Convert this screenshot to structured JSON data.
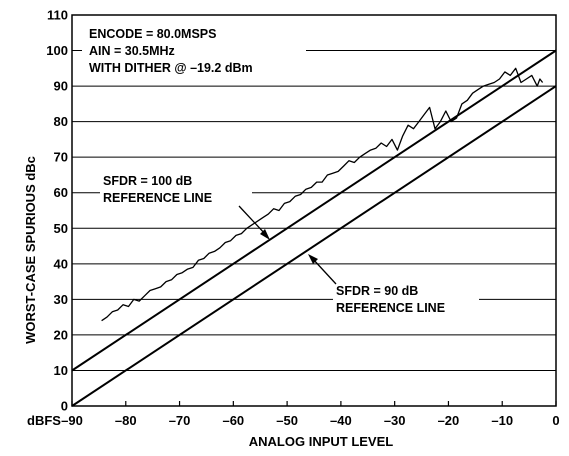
{
  "chart_data": {
    "type": "line",
    "title": "",
    "xlabel": "ANALOG INPUT LEVEL",
    "ylabel": "WORST-CASE SPURIOUS dBc",
    "x_unit_label": "dBFS",
    "xlim": [
      -90,
      0
    ],
    "ylim": [
      0,
      110
    ],
    "x_ticks": [
      "-90",
      "-80",
      "-70",
      "-60",
      "-50",
      "-40",
      "-30",
      "-20",
      "-10",
      "0"
    ],
    "x_tick_values": [
      -90,
      -80,
      -70,
      -60,
      -50,
      -40,
      -30,
      -20,
      -10,
      0
    ],
    "y_ticks": [
      "0",
      "10",
      "20",
      "30",
      "40",
      "50",
      "60",
      "70",
      "80",
      "90",
      "100",
      "110"
    ],
    "y_tick_values": [
      0,
      10,
      20,
      30,
      40,
      50,
      60,
      70,
      80,
      90,
      100,
      110
    ],
    "grid": "horizontal",
    "annotations": {
      "conditions": [
        "ENCODE = 80.0MSPS",
        "AIN = 30.5MHz",
        "WITH DITHER @ –19.2 dBm"
      ],
      "ref100": [
        "SFDR = 100 dB",
        "REFERENCE LINE"
      ],
      "ref90": [
        "SFDR = 90 dB",
        "REFERENCE LINE"
      ]
    },
    "series": [
      {
        "kind": "measured",
        "x": [
          -84.5,
          -83.5,
          -82.5,
          -81.5,
          -80.5,
          -79.5,
          -78.5,
          -77.5,
          -76.5,
          -75.5,
          -74.5,
          -73.5,
          -72.5,
          -71.5,
          -70.5,
          -69.5,
          -68.5,
          -67.5,
          -66.5,
          -65.5,
          -64.5,
          -63.5,
          -62.5,
          -61.5,
          -60.5,
          -59.5,
          -58.5,
          -57.5,
          -56.5,
          -55.5,
          -54.5,
          -53.5,
          -52.5,
          -51.5,
          -50.5,
          -49.5,
          -48.5,
          -47.5,
          -46.5,
          -45.5,
          -44.5,
          -43.5,
          -42.5,
          -41.5,
          -40.5,
          -39.5,
          -38.5,
          -37.5,
          -36.5,
          -35.5,
          -34.5,
          -33.5,
          -32.5,
          -31.5,
          -30.5,
          -29.5,
          -28.5,
          -27.5,
          -26.5,
          -25.5,
          -24.5,
          -23.5,
          -22.5,
          -21.5,
          -20.5,
          -19.5,
          -18.5,
          -17.5,
          -16.5,
          -15.5,
          -14.5,
          -13.5,
          -12.5,
          -11.5,
          -10.5,
          -9.5,
          -8.5,
          -7.5,
          -6.5,
          -5.5,
          -4.5,
          -3.5,
          -3,
          -2.5
        ],
        "y": [
          24,
          25,
          26.5,
          27,
          28.5,
          28,
          30,
          29.5,
          31,
          32.5,
          33,
          33.5,
          35,
          35.5,
          37,
          37.5,
          38.5,
          39,
          41,
          41.5,
          43,
          43.5,
          44.5,
          46,
          46.5,
          48,
          48.5,
          50,
          51,
          52,
          53,
          54,
          55.5,
          55,
          57,
          57.5,
          59,
          59.5,
          61,
          61.5,
          63,
          63,
          65,
          65.5,
          66,
          67.5,
          69,
          68.5,
          70,
          71,
          72,
          72.5,
          74,
          73,
          75,
          72,
          76,
          79,
          78,
          80,
          82,
          84,
          78,
          80,
          83,
          80,
          81,
          85,
          86,
          88,
          89,
          90,
          90.5,
          91,
          92,
          94,
          93,
          95,
          91,
          92,
          93,
          90,
          92,
          91
        ]
      },
      {
        "kind": "reference",
        "name": "SFDR = 100 dB",
        "x": [
          -90,
          0
        ],
        "y": [
          10,
          100
        ]
      },
      {
        "kind": "reference",
        "name": "SFDR = 90 dB",
        "x": [
          -90,
          0
        ],
        "y": [
          0,
          90
        ]
      }
    ]
  }
}
